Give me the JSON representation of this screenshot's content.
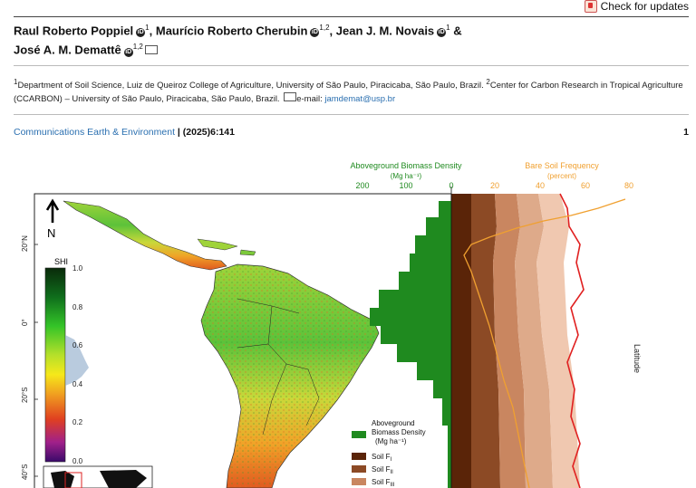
{
  "header": {
    "check_updates": "Check for updates"
  },
  "authors": {
    "a1": "Raul Roberto Poppiel",
    "a1_sup": "1",
    "a2": "Maurício Roberto Cherubin",
    "a2_sup": "1,2",
    "a3": "Jean J. M. Novais",
    "a3_sup": "1",
    "and": "&",
    "a4": "José A. M. Demattê",
    "a4_sup": "1,2"
  },
  "affiliation": {
    "text": "Department of Soil Science, Luiz de Queiroz College of Agriculture, University of São Paulo, Piracicaba, São Paulo, Brazil.",
    "text2": "Center for Carbon Research in Tropical Agriculture (CCARBON) – University of São Paulo, Piracicaba, São Paulo, Brazil.",
    "email_label": "e-mail:",
    "email": "jamdemat@usp.br"
  },
  "journal": {
    "name": "Communications Earth & Environment",
    "citation": "| (2025)6:141",
    "page": "1"
  },
  "figure": {
    "north": "N",
    "shi_title": "SHI",
    "shi_ticks": [
      "1.0",
      "0.8",
      "0.6",
      "0.4",
      "0.2",
      "0.0"
    ],
    "lat_ticks": [
      "20°N",
      "0°",
      "20°S",
      "40°S"
    ],
    "biomass_title": "Aboveground Biomass Density",
    "biomass_unit": "(Mg ha⁻¹)",
    "biomass_ticks": [
      "200",
      "100",
      "0"
    ],
    "bare_title": "Bare Soil Frequency",
    "bare_unit": "(percent)",
    "bare_ticks": [
      "20",
      "40",
      "60",
      "80"
    ],
    "latitude_label": "Latitude",
    "legend": {
      "biomass1": "Aboveground",
      "biomass2": "Biomass Density",
      "biomass3": "(Mg ha⁻¹)",
      "soil_f1": "Soil F",
      "soil_f1_sub": "I",
      "soil_f2": "Soil F",
      "soil_f2_sub": "II",
      "soil_f3": "Soil F",
      "soil_f3_sub": "III"
    },
    "colors": {
      "biomass": "#1f8a1f",
      "bare_line": "#f0a030",
      "soil1": "#5a2408",
      "soil2": "#8c4a25",
      "soil3": "#c98660",
      "soil4": "#e9b89c",
      "outline_red": "#e02020"
    }
  }
}
